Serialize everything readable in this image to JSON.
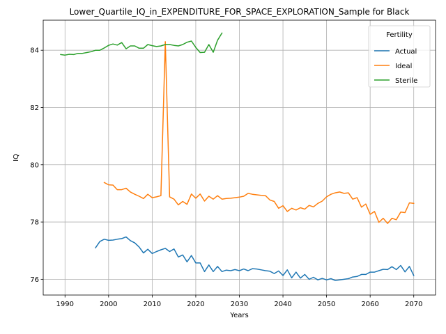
{
  "chart_data": {
    "type": "line",
    "title": "Lower_Quartile_IQ_in_EXPENDITURE_FOR_SPACE_EXPLORATION_Sample for Black",
    "xlabel": "Years",
    "ylabel": "IQ",
    "xlim": [
      1985,
      2075
    ],
    "ylim": [
      75.45,
      85.05
    ],
    "x_ticks": [
      1990,
      2000,
      2010,
      2020,
      2030,
      2040,
      2050,
      2060,
      2070
    ],
    "y_ticks": [
      76,
      78,
      80,
      82,
      84
    ],
    "grid": true,
    "legend": {
      "title": "Fertility",
      "placement": "top-right"
    },
    "colors": {
      "Actual": "#1f77b4",
      "Ideal": "#ff7f0e",
      "Sterile": "#2ca02c"
    },
    "series": [
      {
        "name": "Actual",
        "x": [
          1997,
          1998,
          1999,
          2000,
          2001,
          2002,
          2003,
          2004,
          2005,
          2006,
          2007,
          2008,
          2009,
          2010,
          2011,
          2012,
          2013,
          2014,
          2015,
          2016,
          2017,
          2018,
          2019,
          2020,
          2021,
          2022,
          2023,
          2024,
          2025,
          2026,
          2027,
          2028,
          2029,
          2030,
          2031,
          2032,
          2033,
          2034,
          2035,
          2036,
          2037,
          2038,
          2039,
          2040,
          2041,
          2042,
          2043,
          2044,
          2045,
          2046,
          2047,
          2048,
          2049,
          2050,
          2051,
          2052,
          2053,
          2054,
          2055,
          2056,
          2057,
          2058,
          2059,
          2060,
          2061,
          2062,
          2063,
          2064,
          2065,
          2066,
          2067,
          2068,
          2069,
          2070
        ],
        "values": [
          77.1,
          77.32,
          77.4,
          77.36,
          77.37,
          77.4,
          77.42,
          77.48,
          77.35,
          77.27,
          77.13,
          76.92,
          77.05,
          76.9,
          76.97,
          77.03,
          77.08,
          76.97,
          77.06,
          76.78,
          76.85,
          76.61,
          76.83,
          76.57,
          76.57,
          76.27,
          76.5,
          76.27,
          76.45,
          76.27,
          76.32,
          76.3,
          76.34,
          76.3,
          76.36,
          76.3,
          76.37,
          76.36,
          76.33,
          76.3,
          76.28,
          76.2,
          76.29,
          76.13,
          76.33,
          76.05,
          76.25,
          76.04,
          76.17,
          76.0,
          76.07,
          75.98,
          76.03,
          75.98,
          76.02,
          75.96,
          75.98,
          76.0,
          76.02,
          76.08,
          76.1,
          76.17,
          76.17,
          76.25,
          76.25,
          76.3,
          76.35,
          76.34,
          76.44,
          76.34,
          76.48,
          76.26,
          76.45,
          76.13
        ]
      },
      {
        "name": "Ideal",
        "x": [
          1999,
          2000,
          2001,
          2002,
          2003,
          2004,
          2005,
          2006,
          2007,
          2008,
          2009,
          2010,
          2011,
          2012,
          2013,
          2014,
          2015,
          2016,
          2017,
          2018,
          2019,
          2020,
          2021,
          2022,
          2023,
          2024,
          2025,
          2026,
          2027,
          2028,
          2029,
          2030,
          2031,
          2032,
          2033,
          2034,
          2035,
          2036,
          2037,
          2038,
          2039,
          2040,
          2041,
          2042,
          2043,
          2044,
          2045,
          2046,
          2047,
          2048,
          2049,
          2050,
          2051,
          2052,
          2053,
          2054,
          2055,
          2056,
          2057,
          2058,
          2059,
          2060,
          2061,
          2062,
          2063,
          2064,
          2065,
          2066,
          2067,
          2068,
          2069,
          2070
        ],
        "values": [
          79.38,
          79.3,
          79.29,
          79.13,
          79.13,
          79.18,
          79.05,
          78.97,
          78.9,
          78.82,
          78.97,
          78.85,
          78.88,
          78.92,
          84.3,
          78.88,
          78.8,
          78.6,
          78.72,
          78.62,
          78.98,
          78.83,
          78.98,
          78.73,
          78.9,
          78.8,
          78.92,
          78.8,
          78.82,
          78.83,
          78.85,
          78.87,
          78.9,
          79.0,
          78.97,
          78.95,
          78.93,
          78.92,
          78.77,
          78.72,
          78.48,
          78.57,
          78.37,
          78.48,
          78.42,
          78.5,
          78.45,
          78.58,
          78.53,
          78.65,
          78.73,
          78.88,
          78.97,
          79.02,
          79.05,
          79.0,
          79.02,
          78.8,
          78.85,
          78.52,
          78.63,
          78.27,
          78.37,
          77.99,
          78.13,
          77.95,
          78.13,
          78.08,
          78.35,
          78.33,
          78.67,
          78.65
        ]
      },
      {
        "name": "Sterile",
        "x": [
          1989,
          1990,
          1991,
          1992,
          1993,
          1994,
          1995,
          1996,
          1997,
          1998,
          1999,
          2000,
          2001,
          2002,
          2003,
          2004,
          2005,
          2006,
          2007,
          2008,
          2009,
          2010,
          2011,
          2012,
          2013,
          2014,
          2015,
          2016,
          2017,
          2018,
          2019,
          2020,
          2021,
          2022,
          2023,
          2024,
          2025,
          2026
        ],
        "values": [
          83.85,
          83.83,
          83.86,
          83.85,
          83.89,
          83.89,
          83.92,
          83.95,
          84.0,
          84.0,
          84.08,
          84.17,
          84.22,
          84.18,
          84.27,
          84.05,
          84.15,
          84.15,
          84.07,
          84.07,
          84.2,
          84.16,
          84.13,
          84.15,
          84.2,
          84.2,
          84.17,
          84.15,
          84.2,
          84.28,
          84.32,
          84.1,
          83.92,
          83.93,
          84.2,
          83.93,
          84.35,
          84.6
        ]
      }
    ]
  }
}
